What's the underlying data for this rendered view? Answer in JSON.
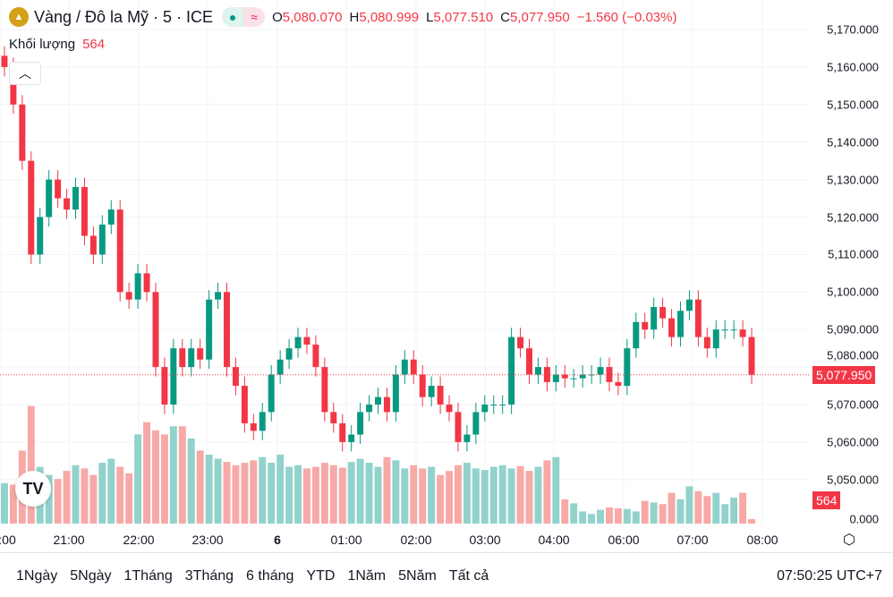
{
  "header": {
    "title": "Vàng / Đô la Mỹ · 5 · ICE",
    "o_label": "O",
    "o": "5,080.070",
    "h_label": "H",
    "h": "5,080.999",
    "l_label": "L",
    "l": "5,077.510",
    "c_label": "C",
    "c": "5,077.950",
    "change": "−1.560 (−0.03%)",
    "pill_dot": "●",
    "pill_wave": "≈"
  },
  "volume_legend": {
    "label": "Khối lượng",
    "value": "564"
  },
  "colors": {
    "up": "#089981",
    "down": "#f23645",
    "vol_up": "#92d2cc",
    "vol_down": "#f7a9a7"
  },
  "chart_data": {
    "type": "candlestick",
    "ylim": [
      5000,
      5170
    ],
    "price_ticks": [
      "5,170.000",
      "5,160.000",
      "5,150.000",
      "5,140.000",
      "5,130.000",
      "5,120.000",
      "5,110.000",
      "5,100.000",
      "5,090.000",
      "5,080.000",
      "5,070.000",
      "5,060.000",
      "5,050.000",
      "0.000"
    ],
    "time_ticks": [
      ":00",
      "21:00",
      "22:00",
      "23:00",
      "6",
      "01:00",
      "02:00",
      "03:00",
      "04:00",
      "06:00",
      "07:00",
      "08:00"
    ],
    "closes": [
      5160,
      5150,
      5135,
      5110,
      5120,
      5130,
      5125,
      5122,
      5128,
      5115,
      5110,
      5118,
      5122,
      5100,
      5098,
      5105,
      5100,
      5080,
      5070,
      5085,
      5080,
      5085,
      5082,
      5098,
      5100,
      5080,
      5075,
      5065,
      5063,
      5068,
      5078,
      5082,
      5085,
      5088,
      5086,
      5080,
      5068,
      5065,
      5060,
      5062,
      5068,
      5070,
      5072,
      5068,
      5078,
      5082,
      5078,
      5072,
      5075,
      5070,
      5068,
      5060,
      5062,
      5068,
      5070,
      5070,
      5070,
      5088,
      5085,
      5078,
      5080,
      5076,
      5078,
      5077,
      5077,
      5078,
      5078,
      5080,
      5076,
      5075,
      5085,
      5092,
      5090,
      5096,
      5093,
      5088,
      5095,
      5098,
      5088,
      5085,
      5090,
      5090,
      5090,
      5088,
      5077.95
    ],
    "volumes": [
      5000,
      4800,
      9000,
      14500,
      7000,
      6000,
      5500,
      6500,
      7200,
      6800,
      6000,
      7500,
      8000,
      7000,
      6200,
      11000,
      12500,
      11500,
      11000,
      12000,
      12000,
      10500,
      9000,
      8500,
      8000,
      7600,
      7200,
      7500,
      7800,
      8200,
      7500,
      8500,
      7000,
      7200,
      6800,
      7000,
      7500,
      7200,
      6900,
      7600,
      8000,
      7500,
      7000,
      8200,
      7800,
      6800,
      7200,
      6800,
      7000,
      6000,
      6500,
      7200,
      7500,
      6800,
      6600,
      7000,
      7200,
      6800,
      7100,
      6500,
      7000,
      7800,
      8200,
      3000,
      2500,
      1500,
      1200,
      1700,
      2000,
      1900,
      1800,
      1500,
      2800,
      2600,
      2400,
      3800,
      3000,
      4600,
      4000,
      3400,
      3800,
      2400,
      3200,
      3800,
      564
    ],
    "last_price": "5,077.950",
    "last_volume": "564"
  },
  "ranges": [
    "1Ngày",
    "5Ngày",
    "1Tháng",
    "3Tháng",
    "6 tháng",
    "YTD",
    "1Năm",
    "5Năm",
    "Tất cả"
  ],
  "clock": "07:50:25 UTC+7"
}
